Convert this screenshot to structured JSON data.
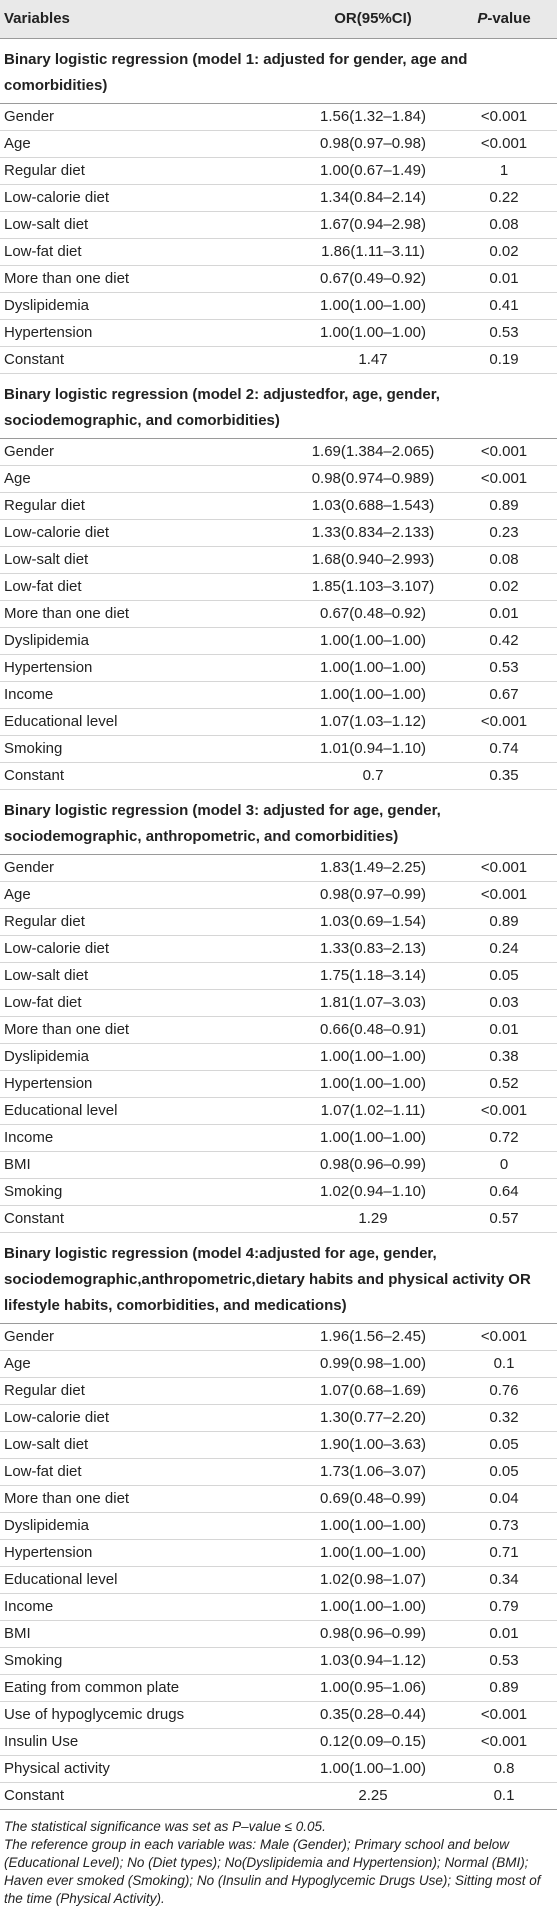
{
  "header": {
    "col1": "Variables",
    "col2": "OR(95%CI)",
    "col3_italic": "P",
    "col3_rest": "-value"
  },
  "sections": [
    {
      "title": "Binary logistic regression (model 1: adjusted for gender, age and comorbidities)",
      "rows": [
        [
          "Gender",
          "1.56(1.32–1.84)",
          "<0.001"
        ],
        [
          "Age",
          "0.98(0.97–0.98)",
          "<0.001"
        ],
        [
          "Regular diet",
          "1.00(0.67–1.49)",
          "1"
        ],
        [
          "Low-calorie diet",
          "1.34(0.84–2.14)",
          "0.22"
        ],
        [
          "Low-salt diet",
          "1.67(0.94–2.98)",
          "0.08"
        ],
        [
          "Low-fat diet",
          "1.86(1.11–3.11)",
          "0.02"
        ],
        [
          "More than one diet",
          "0.67(0.49–0.92)",
          "0.01"
        ],
        [
          "Dyslipidemia",
          "1.00(1.00–1.00)",
          "0.41"
        ],
        [
          "Hypertension",
          "1.00(1.00–1.00)",
          "0.53"
        ],
        [
          "Constant",
          "1.47",
          "0.19"
        ]
      ]
    },
    {
      "title": "Binary logistic regression (model 2: adjustedfor, age, gender, sociodemographic, and comorbidities)",
      "rows": [
        [
          "Gender",
          "1.69(1.384–2.065)",
          "<0.001"
        ],
        [
          "Age",
          "0.98(0.974–0.989)",
          "<0.001"
        ],
        [
          "Regular diet",
          "1.03(0.688–1.543)",
          "0.89"
        ],
        [
          "Low-calorie diet",
          "1.33(0.834–2.133)",
          "0.23"
        ],
        [
          "Low-salt diet",
          "1.68(0.940–2.993)",
          "0.08"
        ],
        [
          "Low-fat diet",
          "1.85(1.103–3.107)",
          "0.02"
        ],
        [
          "More than one diet",
          "0.67(0.48–0.92)",
          "0.01"
        ],
        [
          "Dyslipidemia",
          "1.00(1.00–1.00)",
          "0.42"
        ],
        [
          "Hypertension",
          "1.00(1.00–1.00)",
          "0.53"
        ],
        [
          "Income",
          "1.00(1.00–1.00)",
          "0.67"
        ],
        [
          "Educational level",
          "1.07(1.03–1.12)",
          "<0.001"
        ],
        [
          "Smoking",
          "1.01(0.94–1.10)",
          "0.74"
        ],
        [
          "Constant",
          "0.7",
          "0.35"
        ]
      ]
    },
    {
      "title": "Binary logistic regression (model 3: adjusted for age, gender, sociodemographic, anthropometric, and comorbidities)",
      "rows": [
        [
          "Gender",
          "1.83(1.49–2.25)",
          "<0.001"
        ],
        [
          "Age",
          "0.98(0.97–0.99)",
          "<0.001"
        ],
        [
          "Regular diet",
          "1.03(0.69–1.54)",
          "0.89"
        ],
        [
          "Low-calorie diet",
          "1.33(0.83–2.13)",
          "0.24"
        ],
        [
          "Low-salt diet",
          "1.75(1.18–3.14)",
          "0.05"
        ],
        [
          "Low-fat diet",
          "1.81(1.07–3.03)",
          "0.03"
        ],
        [
          "More than one diet",
          "0.66(0.48–0.91)",
          "0.01"
        ],
        [
          "Dyslipidemia",
          "1.00(1.00–1.00)",
          "0.38"
        ],
        [
          "Hypertension",
          "1.00(1.00–1.00)",
          "0.52"
        ],
        [
          "Educational level",
          "1.07(1.02–1.11)",
          "<0.001"
        ],
        [
          "Income",
          "1.00(1.00–1.00)",
          "0.72"
        ],
        [
          "BMI",
          "0.98(0.96–0.99)",
          "0"
        ],
        [
          "Smoking",
          "1.02(0.94–1.10)",
          "0.64"
        ],
        [
          "Constant",
          "1.29",
          "0.57"
        ]
      ]
    },
    {
      "title": "Binary logistic regression (model 4:adjusted for age, gender, sociodemographic,anthropometric,dietary habits and physical activity OR lifestyle habits, comorbidities, and medications)",
      "rows": [
        [
          "Gender",
          "1.96(1.56–2.45)",
          "<0.001"
        ],
        [
          "Age",
          "0.99(0.98–1.00)",
          "0.1"
        ],
        [
          "Regular diet",
          "1.07(0.68–1.69)",
          "0.76"
        ],
        [
          "Low-calorie diet",
          "1.30(0.77–2.20)",
          "0.32"
        ],
        [
          "Low-salt diet",
          "1.90(1.00–3.63)",
          "0.05"
        ],
        [
          "Low-fat diet",
          "1.73(1.06–3.07)",
          "0.05"
        ],
        [
          "More than one diet",
          "0.69(0.48–0.99)",
          "0.04"
        ],
        [
          "Dyslipidemia",
          "1.00(1.00–1.00)",
          "0.73"
        ],
        [
          "Hypertension",
          "1.00(1.00–1.00)",
          "0.71"
        ],
        [
          "Educational level",
          "1.02(0.98–1.07)",
          "0.34"
        ],
        [
          "Income",
          "1.00(1.00–1.00)",
          "0.79"
        ],
        [
          "BMI",
          "0.98(0.96–0.99)",
          "0.01"
        ],
        [
          "Smoking",
          "1.03(0.94–1.12)",
          "0.53"
        ],
        [
          "Eating from common plate",
          "1.00(0.95–1.06)",
          "0.89"
        ],
        [
          "Use of hypoglycemic drugs",
          "0.35(0.28–0.44)",
          "<0.001"
        ],
        [
          "Insulin Use",
          "0.12(0.09–0.15)",
          "<0.001"
        ],
        [
          "Physical activity",
          "1.00(1.00–1.00)",
          "0.8"
        ],
        [
          "Constant",
          "2.25",
          "0.1"
        ]
      ]
    }
  ],
  "notes": [
    "The statistical significance was set as P–value ≤ 0.05.",
    "The reference group in each variable was: Male (Gender); Primary school and below (Educational Level); No (Diet types); No(Dyslipidemia and Hypertension); Normal (BMI); Haven ever smoked (Smoking); No (Insulin and Hypoglycemic Drugs Use); Sitting most of the time (Physical Activity)."
  ]
}
